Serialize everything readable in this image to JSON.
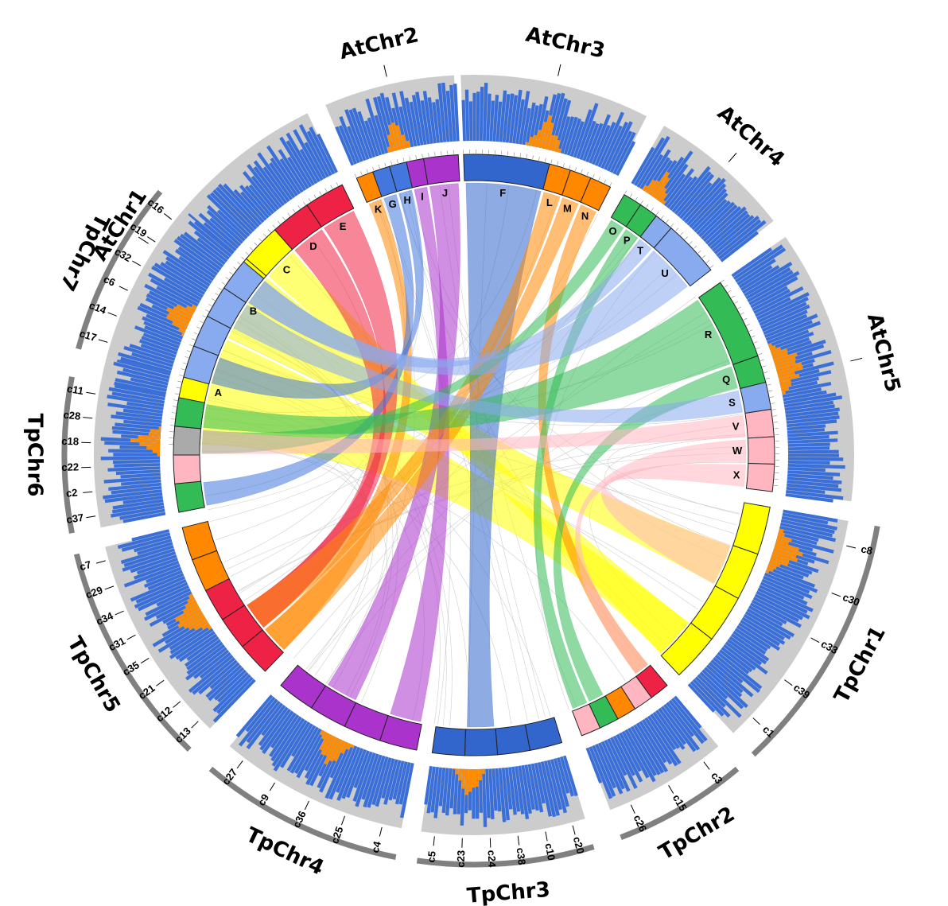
{
  "chromosomes": {
    "at": [
      {
        "name": "AtChr1",
        "blocks": [
          {
            "label": "A",
            "color": "#ffff00"
          },
          {
            "label": "B",
            "color": "#ffff00"
          },
          {
            "label": "C",
            "color": "#ffff00"
          },
          {
            "label": "D",
            "color": "#ee2244"
          },
          {
            "label": "E",
            "color": "#ee2244"
          }
        ]
      },
      {
        "name": "AtChr2",
        "blocks": [
          {
            "label": "K",
            "color": "#ff8800"
          },
          {
            "label": "G",
            "color": "#4477dd"
          },
          {
            "label": "H",
            "color": "#4477dd"
          },
          {
            "label": "I",
            "color": "#aa33cc"
          },
          {
            "label": "J",
            "color": "#aa33cc"
          }
        ]
      },
      {
        "name": "AtChr3",
        "blocks": [
          {
            "label": "F",
            "color": "#3366cc"
          },
          {
            "label": "L",
            "color": "#ff8800"
          },
          {
            "label": "M",
            "color": "#ff8800"
          },
          {
            "label": "N",
            "color": "#ff8800"
          }
        ]
      },
      {
        "name": "AtChr4",
        "blocks": [
          {
            "label": "O",
            "color": "#33bb55"
          },
          {
            "label": "P",
            "color": "#33bb55"
          },
          {
            "label": "T",
            "color": "#88aaee"
          },
          {
            "label": "U",
            "color": "#88aaee"
          }
        ]
      },
      {
        "name": "AtChr5",
        "blocks": [
          {
            "label": "R",
            "color": "#33bb55"
          },
          {
            "label": "Q",
            "color": "#33bb55"
          },
          {
            "label": "S",
            "color": "#88aaee"
          },
          {
            "label": "V",
            "color": "#ffb6c1"
          },
          {
            "label": "W",
            "color": "#ffb6c1"
          },
          {
            "label": "X",
            "color": "#ffb6c1"
          }
        ]
      }
    ],
    "tp": [
      {
        "name": "TpChr1",
        "contigs": [
          "c8",
          "c30",
          "c33",
          "c39",
          "c1"
        ]
      },
      {
        "name": "TpChr2",
        "contigs": [
          "c3",
          "c15",
          "c26"
        ]
      },
      {
        "name": "TpChr3",
        "contigs": [
          "c20",
          "c10",
          "c38",
          "c24",
          "c23",
          "c5"
        ]
      },
      {
        "name": "TpChr4",
        "contigs": [
          "c4",
          "c25",
          "c36",
          "c9",
          "c27"
        ]
      },
      {
        "name": "TpChr5",
        "contigs": [
          "c13",
          "c12",
          "c21",
          "c35",
          "c31",
          "c34",
          "c29",
          "c7"
        ]
      },
      {
        "name": "TpChr6",
        "contigs": [
          "c37",
          "c2",
          "c22",
          "c18",
          "c28",
          "c11"
        ]
      },
      {
        "name": "TpChr7",
        "contigs": [
          "c17",
          "c14",
          "c6",
          "c32",
          "c19",
          "c16"
        ]
      }
    ]
  },
  "colors": {
    "histogram_main": "#3a6fd8",
    "histogram_peak": "#ff8c00",
    "histogram_track": "#cccccc",
    "outer_arc": "#808080",
    "link_background": "#bbbbbb"
  }
}
